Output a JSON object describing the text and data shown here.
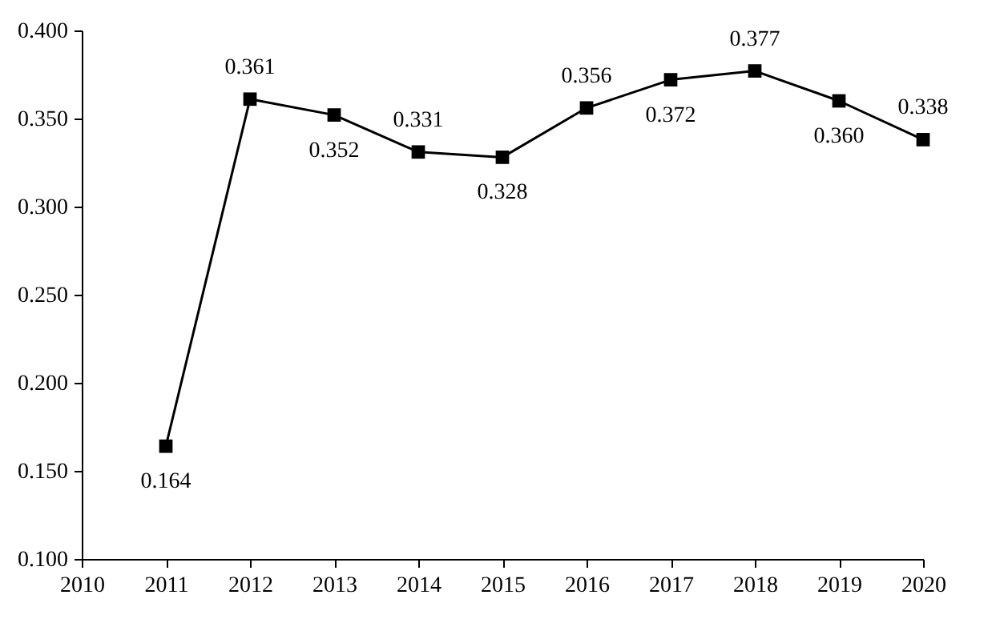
{
  "chart_data": {
    "type": "line",
    "x": [
      2011,
      2012,
      2013,
      2014,
      2015,
      2016,
      2017,
      2018,
      2019,
      2020
    ],
    "series": [
      {
        "color": "#000000",
        "values": [
          0.164,
          0.361,
          0.352,
          0.331,
          0.328,
          0.356,
          0.372,
          0.377,
          0.36,
          0.338
        ],
        "value_labels": [
          "0.164",
          "0.361",
          "0.352",
          "0.331",
          "0.328",
          "0.356",
          "0.372",
          "0.377",
          "0.360",
          "0.338"
        ]
      }
    ],
    "xlim": [
      2010,
      2020
    ],
    "xticks": [
      2010,
      2011,
      2012,
      2013,
      2014,
      2015,
      2016,
      2017,
      2018,
      2019,
      2020
    ],
    "ylim": [
      0.1,
      0.4
    ],
    "yticks": [
      {
        "value": 0.1,
        "label": "0.100"
      },
      {
        "value": 0.15,
        "label": "0.150"
      },
      {
        "value": 0.2,
        "label": "0.200"
      },
      {
        "value": 0.25,
        "label": "0.250"
      },
      {
        "value": 0.3,
        "label": "0.300"
      },
      {
        "value": 0.35,
        "label": "0.350"
      },
      {
        "value": 0.4,
        "label": "0.400"
      }
    ],
    "grid": false,
    "marker": "square",
    "line_style": "solid"
  }
}
